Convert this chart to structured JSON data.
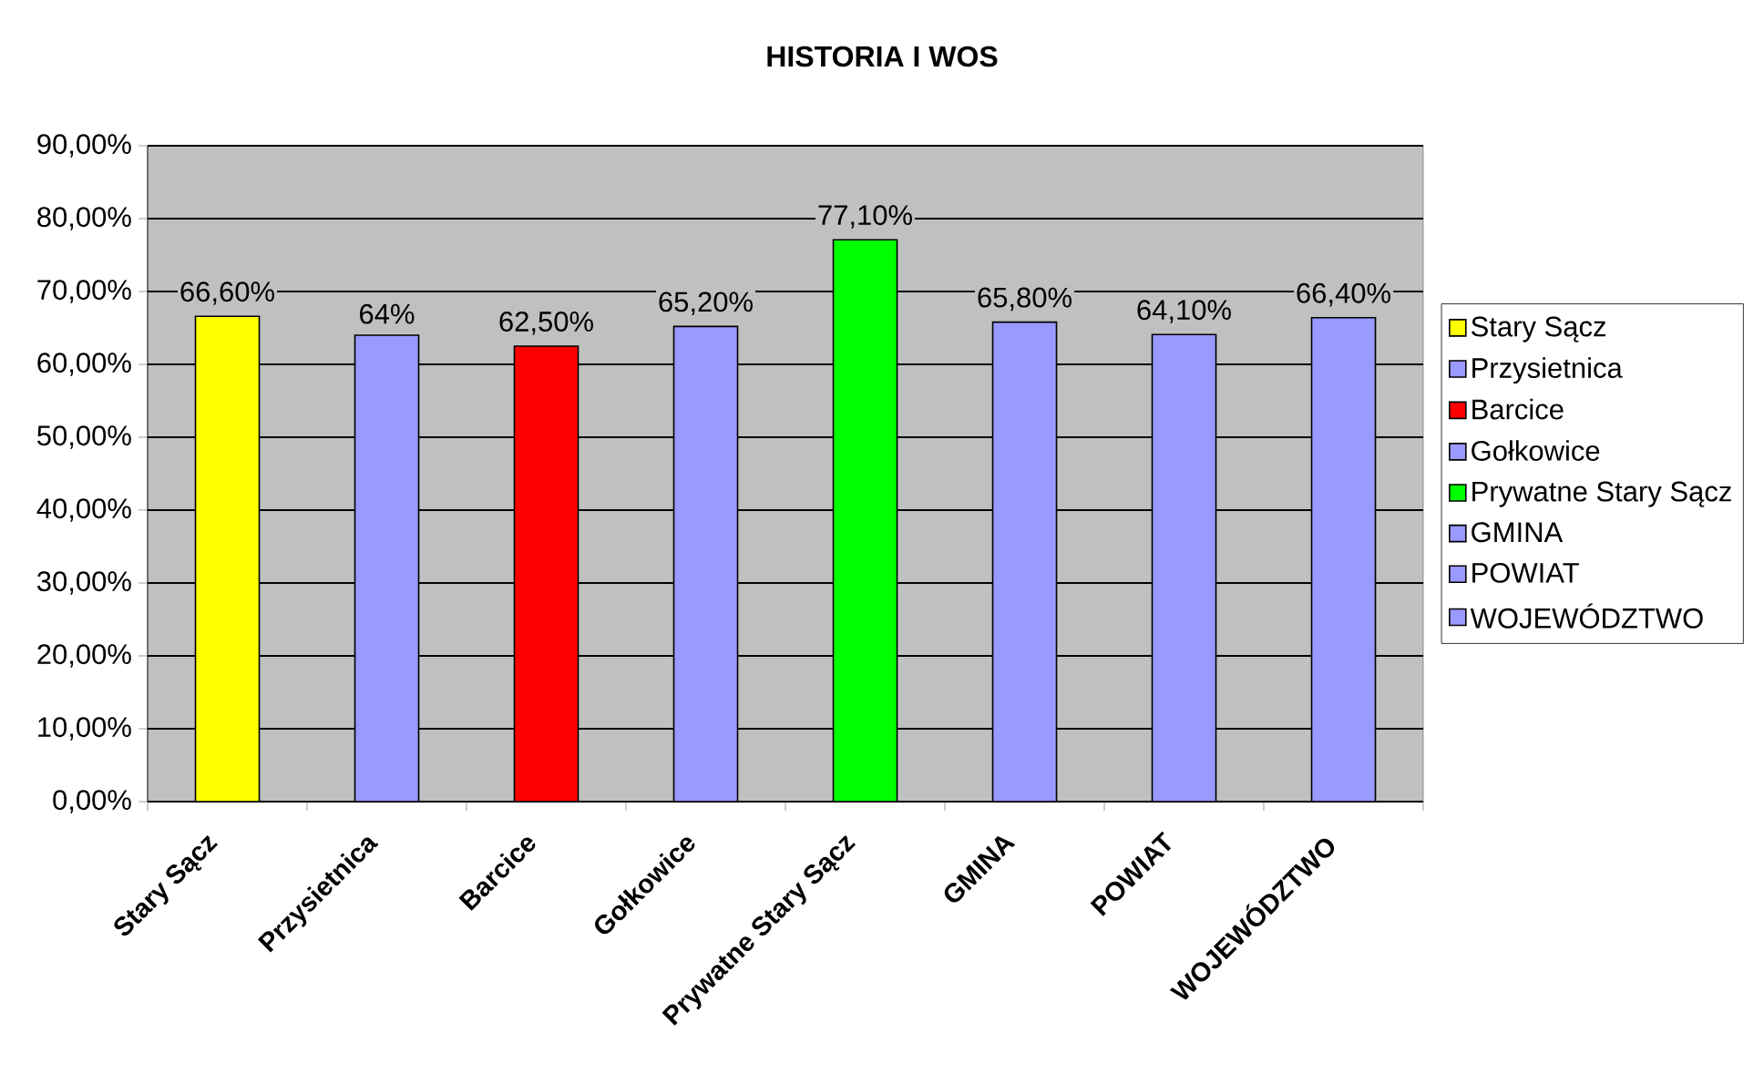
{
  "chart_data": {
    "type": "bar",
    "title": "HISTORIA I WOS",
    "categories": [
      "Stary Sącz",
      "Przysietnica",
      "Barcice",
      "Gołkowice",
      "Prywatne Stary Sącz",
      "GMINA",
      "POWIAT",
      "WOJEWÓDZTWO"
    ],
    "series": [
      {
        "name": "Stary Sącz",
        "color": "#ffff00",
        "values": [
          66.6,
          null,
          null,
          null,
          null,
          null,
          null,
          null
        ],
        "value_labels": [
          "66,60%",
          null,
          null,
          null,
          null,
          null,
          null,
          null
        ]
      },
      {
        "name": "Przysietnica",
        "color": "#9999ff",
        "values": [
          null,
          64,
          null,
          null,
          null,
          null,
          null,
          null
        ],
        "value_labels": [
          null,
          "64%",
          null,
          null,
          null,
          null,
          null,
          null
        ]
      },
      {
        "name": "Barcice",
        "color": "#ff0000",
        "values": [
          null,
          null,
          62.5,
          null,
          null,
          null,
          null,
          null
        ],
        "value_labels": [
          null,
          null,
          "62,50%",
          null,
          null,
          null,
          null,
          null
        ]
      },
      {
        "name": "Gołkowice",
        "color": "#9999ff",
        "values": [
          null,
          null,
          null,
          65.2,
          null,
          null,
          null,
          null
        ],
        "value_labels": [
          null,
          null,
          null,
          "65,20%",
          null,
          null,
          null,
          null
        ]
      },
      {
        "name": "Prywatne Stary Sącz",
        "color": "#00ff00",
        "values": [
          null,
          null,
          null,
          null,
          77.1,
          null,
          null,
          null
        ],
        "value_labels": [
          null,
          null,
          null,
          null,
          "77,10%",
          null,
          null,
          null
        ]
      },
      {
        "name": "GMINA",
        "color": "#9999ff",
        "values": [
          null,
          null,
          null,
          null,
          null,
          65.8,
          null,
          null
        ],
        "value_labels": [
          null,
          null,
          null,
          null,
          null,
          "65,80%",
          null,
          null
        ]
      },
      {
        "name": "POWIAT",
        "color": "#9999ff",
        "values": [
          null,
          null,
          null,
          null,
          null,
          null,
          64.1,
          null
        ],
        "value_labels": [
          null,
          null,
          null,
          null,
          null,
          null,
          "64,10%",
          null
        ]
      },
      {
        "name": "WOJEWÓDZTWO",
        "color": "#9999ff",
        "values": [
          null,
          null,
          null,
          null,
          null,
          null,
          null,
          66.4
        ],
        "value_labels": [
          null,
          null,
          null,
          null,
          null,
          null,
          null,
          "66,40%"
        ]
      }
    ],
    "ylim": [
      0,
      90
    ],
    "yticks": [
      {
        "value": 0,
        "label": "0,00%"
      },
      {
        "value": 10,
        "label": "10,00%"
      },
      {
        "value": 20,
        "label": "20,00%"
      },
      {
        "value": 30,
        "label": "30,00%"
      },
      {
        "value": 40,
        "label": "40,00%"
      },
      {
        "value": 50,
        "label": "50,00%"
      },
      {
        "value": 60,
        "label": "60,00%"
      },
      {
        "value": 70,
        "label": "70,00%"
      },
      {
        "value": 80,
        "label": "80,00%"
      },
      {
        "value": 90,
        "label": "90,00%"
      }
    ],
    "grid": "y",
    "legend": "right"
  }
}
